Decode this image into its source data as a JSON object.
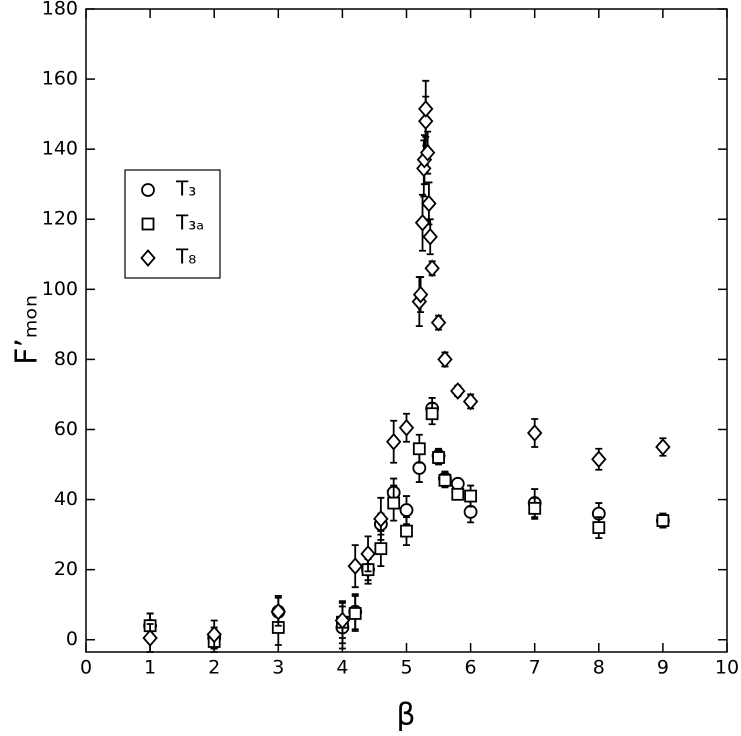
{
  "chart_data": {
    "type": "scatter",
    "x_label": "β",
    "y_label": "F’ₘₒₙ",
    "xlim": [
      0,
      10
    ],
    "ylim": [
      -3.5,
      180
    ],
    "xticks": [
      0,
      1,
      2,
      3,
      4,
      5,
      6,
      7,
      8,
      9,
      10
    ],
    "yticks": [
      0,
      20,
      40,
      60,
      80,
      100,
      120,
      140,
      160,
      180
    ],
    "legend": "upper-left",
    "series": [
      {
        "name": "T₃",
        "marker": "circle",
        "color": "#000000",
        "x": [
          1,
          2,
          3,
          4,
          4.2,
          4.4,
          4.6,
          4.8,
          5.0,
          5.2,
          5.4,
          5.5,
          5.6,
          5.8,
          6,
          7,
          8,
          9
        ],
        "values": [
          4,
          0.5,
          8,
          3.5,
          8,
          20,
          33,
          42,
          37,
          49,
          66,
          52.5,
          46,
          44.5,
          36.5,
          39,
          36,
          34
        ],
        "errors": [
          3.5,
          3,
          4.5,
          6,
          5,
          3,
          3,
          4,
          4,
          4,
          3,
          2,
          2,
          1,
          3,
          4,
          3,
          2
        ]
      },
      {
        "name": "T₃ₐ",
        "marker": "square",
        "color": "#000000",
        "x": [
          1,
          2,
          3,
          4,
          4.2,
          4.4,
          4.6,
          4.8,
          5.0,
          5.2,
          5.4,
          5.5,
          5.6,
          5.8,
          6,
          7,
          8,
          9
        ],
        "values": [
          4,
          -0.5,
          3.5,
          5,
          7.5,
          20,
          26,
          39,
          31,
          54.5,
          64.5,
          52,
          45.5,
          41.5,
          41,
          37.5,
          32,
          34
        ],
        "errors": [
          3.5,
          3,
          5,
          6,
          5,
          4,
          5,
          5,
          4,
          4,
          3,
          2,
          2,
          1,
          3,
          3,
          3,
          2
        ]
      },
      {
        "name": "T₈",
        "marker": "diamond",
        "color": "#000000",
        "x": [
          1,
          2,
          3,
          4,
          4.2,
          4.4,
          4.6,
          4.8,
          5.0,
          5.2,
          5.22,
          5.25,
          5.27,
          5.28,
          5.3,
          5.3,
          5.33,
          5.35,
          5.37,
          5.4,
          5.5,
          5.6,
          5.8,
          6,
          7,
          8,
          9
        ],
        "values": [
          0.5,
          1.5,
          8,
          5.5,
          21,
          24.5,
          34.5,
          56.5,
          60.5,
          96.5,
          98.5,
          119,
          134.5,
          137,
          148,
          151.5,
          139,
          124.5,
          115,
          106,
          90.5,
          80,
          71,
          68,
          59,
          51.5,
          55
        ],
        "errors": [
          4,
          4,
          4,
          5,
          6,
          5,
          6,
          6,
          4,
          7,
          5,
          8,
          8,
          7,
          7,
          8,
          6,
          6,
          5,
          2,
          2,
          2,
          1.5,
          2,
          4,
          3,
          2.5
        ]
      }
    ]
  }
}
